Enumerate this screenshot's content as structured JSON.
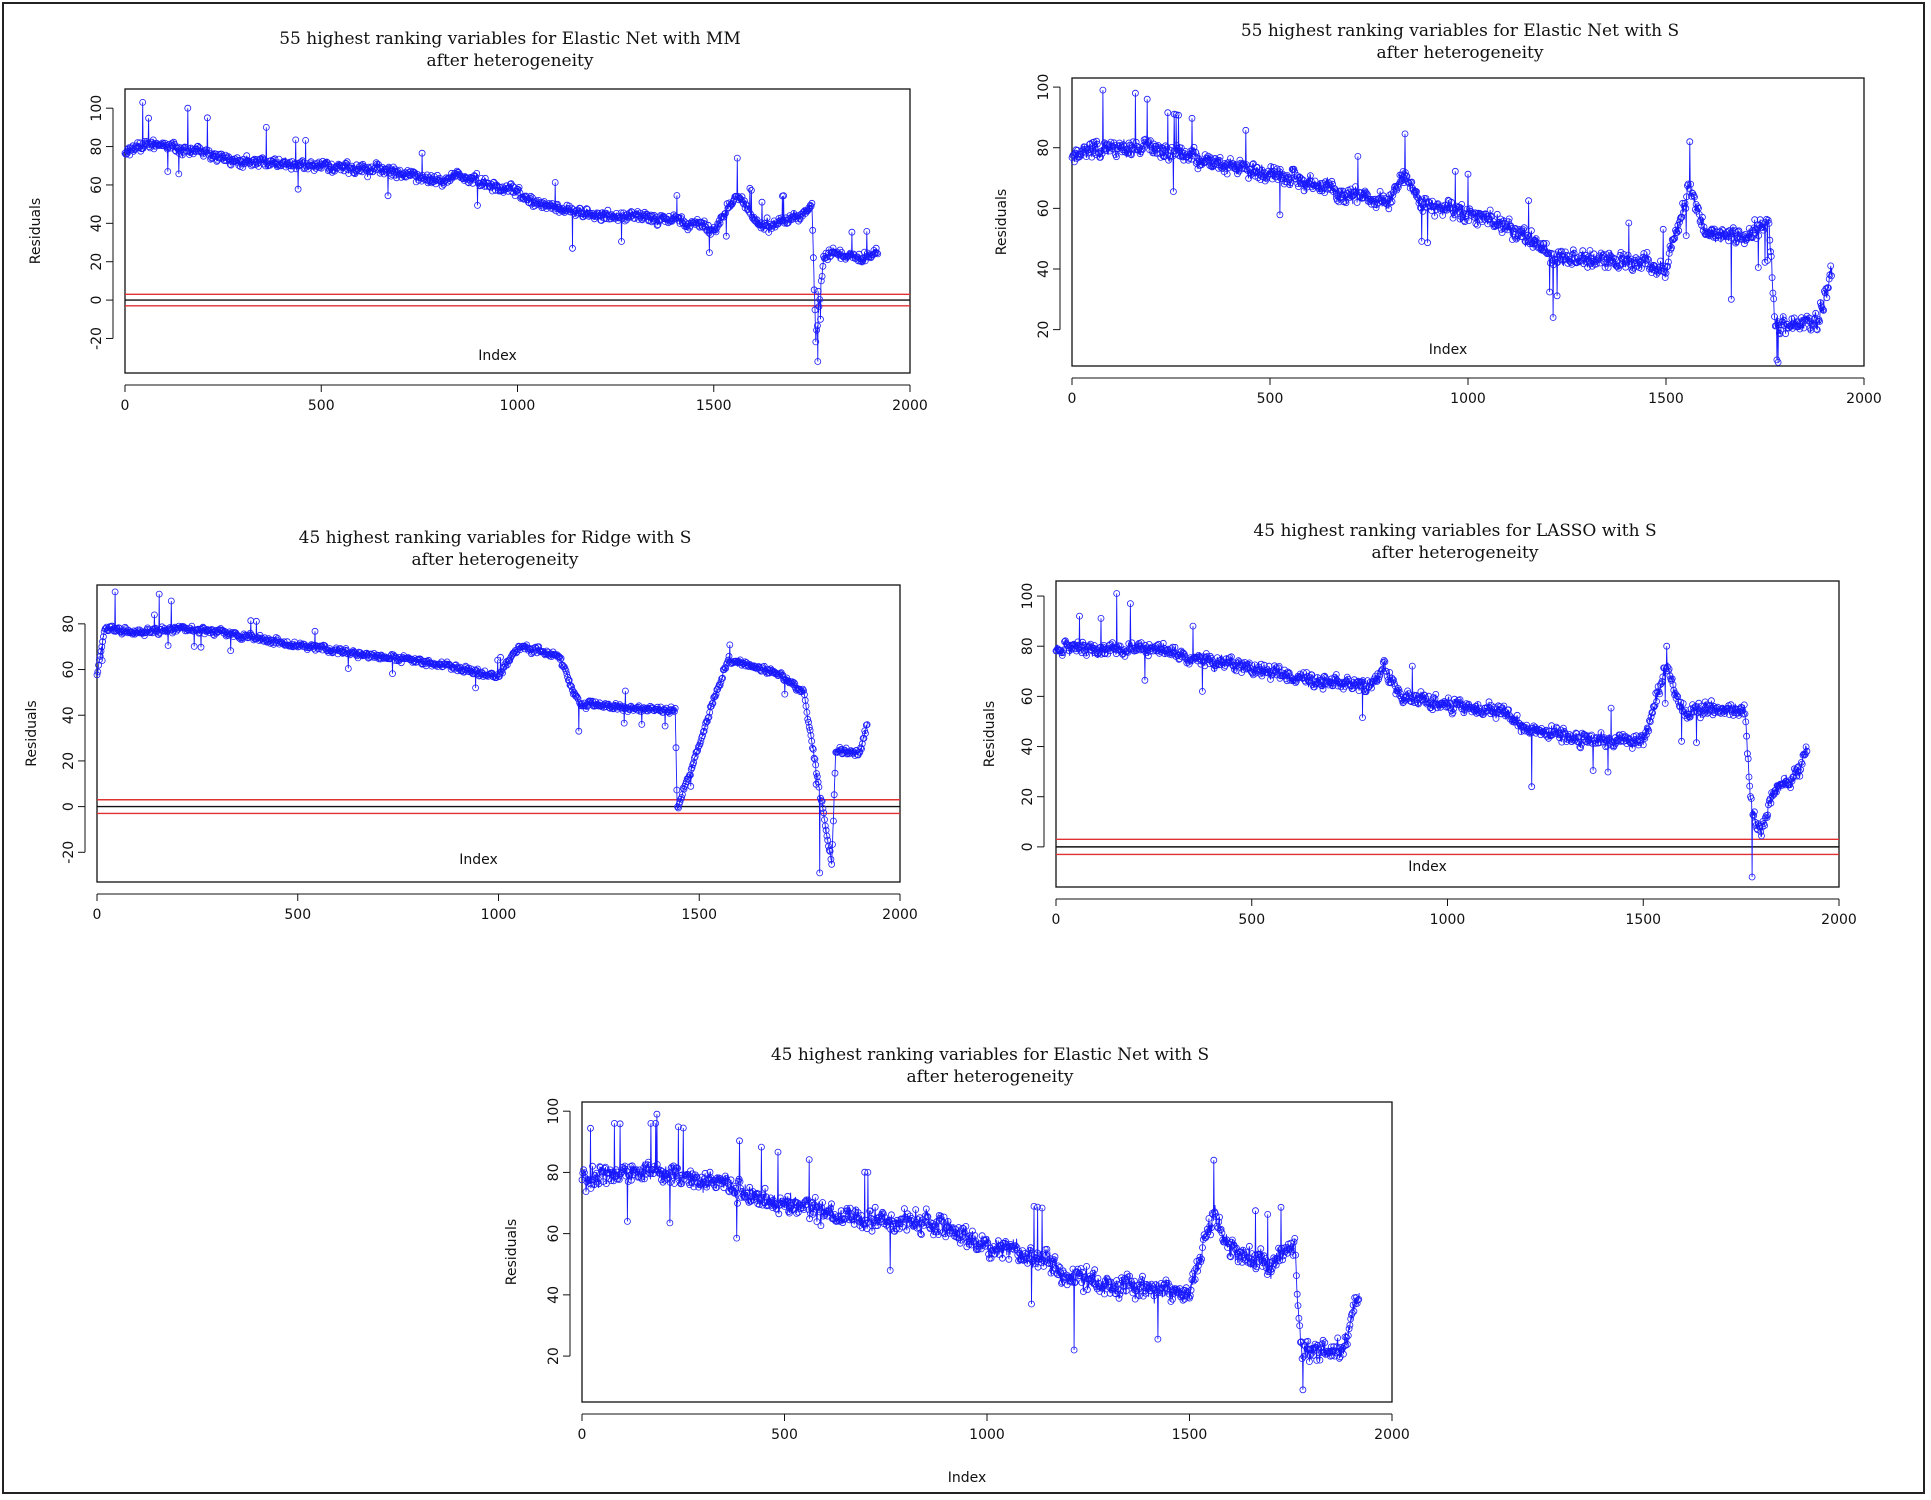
{
  "chart_data": [
    {
      "type": "line",
      "title": "55 highest ranking variables for Elastic Net with MM",
      "subtitle": "after heterogeneity",
      "xlabel": "Index",
      "ylabel": "Residuals",
      "xlim": [
        0,
        2000
      ],
      "ylim": [
        -38,
        110
      ],
      "xticks": [
        0,
        500,
        1000,
        1500,
        2000
      ],
      "yticks": [
        -20,
        0,
        20,
        40,
        60,
        80,
        100
      ],
      "hlines": [
        {
          "y": 3,
          "color": "#e03030"
        },
        {
          "y": 0,
          "color": "#111111"
        },
        {
          "y": -3,
          "color": "#e03030"
        }
      ],
      "series_color": "#1a1aff",
      "seed": 11,
      "noise": 4,
      "segments": [
        [
          0,
          78
        ],
        [
          60,
          82
        ],
        [
          150,
          78
        ],
        [
          300,
          72
        ],
        [
          500,
          70
        ],
        [
          650,
          68
        ],
        [
          800,
          62
        ],
        [
          850,
          65
        ],
        [
          1000,
          56
        ],
        [
          1060,
          50
        ],
        [
          1200,
          44
        ],
        [
          1400,
          42
        ],
        [
          1500,
          37
        ],
        [
          1560,
          54
        ],
        [
          1620,
          38
        ],
        [
          1700,
          43
        ],
        [
          1750,
          48
        ],
        [
          1760,
          -22
        ],
        [
          1780,
          24
        ],
        [
          1880,
          22
        ],
        [
          1920,
          26
        ]
      ],
      "spikes": [
        [
          45,
          103
        ],
        [
          160,
          100
        ],
        [
          210,
          95
        ],
        [
          1560,
          74
        ],
        [
          1140,
          27
        ],
        [
          1765,
          -32
        ],
        [
          1772,
          -10
        ],
        [
          360,
          90
        ]
      ]
    },
    {
      "type": "line",
      "title": "55 highest ranking variables for Elastic Net with S",
      "subtitle": "after heterogeneity",
      "xlabel": "Index",
      "ylabel": "Residuals",
      "xlim": [
        0,
        2000
      ],
      "ylim": [
        8,
        103
      ],
      "xticks": [
        0,
        500,
        1000,
        1500,
        2000
      ],
      "yticks": [
        20,
        40,
        60,
        80,
        100
      ],
      "hlines": [],
      "series_color": "#1a1aff",
      "seed": 23,
      "noise": 4,
      "segments": [
        [
          0,
          78
        ],
        [
          80,
          80
        ],
        [
          200,
          80
        ],
        [
          400,
          74
        ],
        [
          550,
          70
        ],
        [
          700,
          65
        ],
        [
          800,
          62
        ],
        [
          840,
          72
        ],
        [
          880,
          62
        ],
        [
          1050,
          57
        ],
        [
          1150,
          50
        ],
        [
          1220,
          44
        ],
        [
          1450,
          42
        ],
        [
          1500,
          40
        ],
        [
          1560,
          68
        ],
        [
          1600,
          52
        ],
        [
          1700,
          50
        ],
        [
          1760,
          56
        ],
        [
          1775,
          22
        ],
        [
          1880,
          22
        ],
        [
          1920,
          40
        ]
      ],
      "spikes": [
        [
          78,
          99
        ],
        [
          160,
          98
        ],
        [
          190,
          96
        ],
        [
          1560,
          82
        ],
        [
          1215,
          24
        ],
        [
          1665,
          30
        ],
        [
          1780,
          10
        ]
      ]
    },
    {
      "type": "line",
      "title": "45 highest ranking variables for Ridge with S",
      "subtitle": "after heterogeneity",
      "xlabel": "Index",
      "ylabel": "Residuals",
      "xlim": [
        0,
        2000
      ],
      "ylim": [
        -33,
        97
      ],
      "xticks": [
        0,
        500,
        1000,
        1500,
        2000
      ],
      "yticks": [
        -20,
        0,
        20,
        40,
        60,
        80
      ],
      "hlines": [
        {
          "y": 3,
          "color": "#e03030"
        },
        {
          "y": 0,
          "color": "#111111"
        },
        {
          "y": -3,
          "color": "#e03030"
        }
      ],
      "series_color": "#1a1aff",
      "seed": 37,
      "noise": 2.2,
      "segments": [
        [
          0,
          58
        ],
        [
          20,
          78
        ],
        [
          100,
          76
        ],
        [
          200,
          78
        ],
        [
          400,
          74
        ],
        [
          600,
          68
        ],
        [
          800,
          64
        ],
        [
          1000,
          57
        ],
        [
          1050,
          70
        ],
        [
          1150,
          66
        ],
        [
          1200,
          45
        ],
        [
          1440,
          42
        ],
        [
          1445,
          -2
        ],
        [
          1570,
          64
        ],
        [
          1700,
          58
        ],
        [
          1760,
          50
        ],
        [
          1830,
          -25
        ],
        [
          1840,
          24
        ],
        [
          1900,
          24
        ],
        [
          1920,
          37
        ]
      ],
      "spikes": [
        [
          45,
          94
        ],
        [
          155,
          93
        ],
        [
          185,
          90
        ],
        [
          1800,
          -29
        ],
        [
          1200,
          33
        ]
      ]
    },
    {
      "type": "line",
      "title": "45 highest ranking variables for LASSO with S",
      "subtitle": "after heterogeneity",
      "xlabel": "Index",
      "ylabel": "Residuals",
      "xlim": [
        0,
        2000
      ],
      "ylim": [
        -16,
        106
      ],
      "xticks": [
        0,
        500,
        1000,
        1500,
        2000
      ],
      "yticks": [
        0,
        20,
        40,
        60,
        80,
        100
      ],
      "hlines": [
        {
          "y": 3,
          "color": "#e03030"
        },
        {
          "y": 0,
          "color": "#111111"
        },
        {
          "y": -3,
          "color": "#e03030"
        }
      ],
      "series_color": "#1a1aff",
      "seed": 53,
      "noise": 4,
      "segments": [
        [
          0,
          80
        ],
        [
          100,
          78
        ],
        [
          200,
          80
        ],
        [
          400,
          74
        ],
        [
          600,
          68
        ],
        [
          800,
          64
        ],
        [
          840,
          72
        ],
        [
          880,
          60
        ],
        [
          1050,
          56
        ],
        [
          1150,
          54
        ],
        [
          1200,
          46
        ],
        [
          1450,
          42
        ],
        [
          1500,
          42
        ],
        [
          1560,
          72
        ],
        [
          1600,
          54
        ],
        [
          1700,
          55
        ],
        [
          1760,
          54
        ],
        [
          1775,
          18
        ],
        [
          1800,
          4
        ],
        [
          1830,
          22
        ],
        [
          1900,
          30
        ],
        [
          1920,
          42
        ]
      ],
      "spikes": [
        [
          60,
          92
        ],
        [
          155,
          101
        ],
        [
          190,
          97
        ],
        [
          1560,
          80
        ],
        [
          1215,
          24
        ],
        [
          1778,
          -12
        ],
        [
          350,
          88
        ]
      ]
    },
    {
      "type": "line",
      "title": "45 highest ranking variables for Elastic Net with S",
      "subtitle": "after heterogeneity",
      "xlabel": "Index",
      "ylabel": "Residuals",
      "xlim": [
        0,
        2000
      ],
      "ylim": [
        5,
        103
      ],
      "xticks": [
        0,
        500,
        1000,
        1500,
        2000
      ],
      "yticks": [
        20,
        40,
        60,
        80,
        100
      ],
      "hlines": [],
      "series_color": "#1a1aff",
      "seed": 71,
      "noise": 5,
      "segments": [
        [
          0,
          78
        ],
        [
          100,
          80
        ],
        [
          200,
          80
        ],
        [
          400,
          74
        ],
        [
          500,
          70
        ],
        [
          700,
          64
        ],
        [
          850,
          64
        ],
        [
          900,
          62
        ],
        [
          1000,
          56
        ],
        [
          1150,
          52
        ],
        [
          1200,
          46
        ],
        [
          1400,
          42
        ],
        [
          1500,
          40
        ],
        [
          1560,
          66
        ],
        [
          1600,
          54
        ],
        [
          1700,
          50
        ],
        [
          1760,
          56
        ],
        [
          1775,
          22
        ],
        [
          1880,
          22
        ],
        [
          1920,
          42
        ]
      ],
      "spikes": [
        [
          80,
          96
        ],
        [
          170,
          96
        ],
        [
          185,
          99
        ],
        [
          1560,
          84
        ],
        [
          1215,
          22
        ],
        [
          1110,
          37
        ],
        [
          1780,
          9
        ]
      ]
    }
  ]
}
